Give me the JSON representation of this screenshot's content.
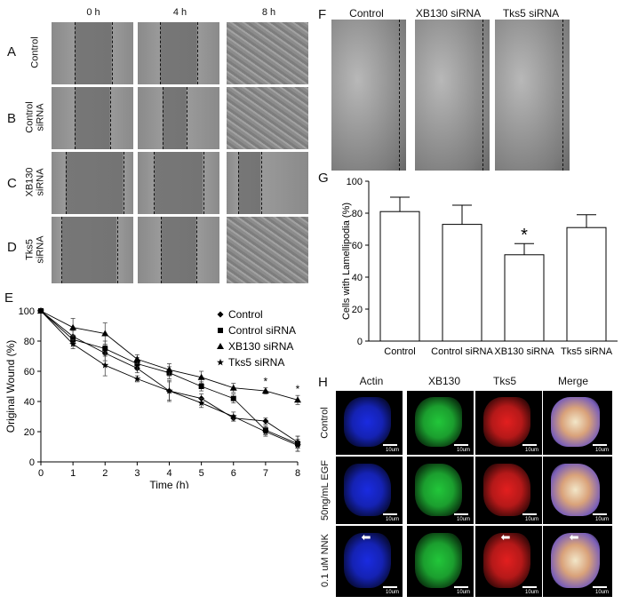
{
  "panelA": {
    "letter": "A",
    "row_label": "Control"
  },
  "panelB": {
    "letter": "B",
    "row_label_1": "Control",
    "row_label_2": "siRNA"
  },
  "panelC": {
    "letter": "C",
    "row_label_1": "XB130",
    "row_label_2": "siRNA"
  },
  "panelD": {
    "letter": "D",
    "row_label_1": "Tks5",
    "row_label_2": "siRNA"
  },
  "wound_columns": [
    "0 h",
    "4 h",
    "8 h"
  ],
  "panelE": {
    "letter": "E"
  },
  "panelF": {
    "letter": "F",
    "columns": [
      "Control",
      "XB130 siRNA",
      "Tks5 siRNA"
    ]
  },
  "panelG": {
    "letter": "G"
  },
  "panelH": {
    "letter": "H",
    "columns": [
      "Actin",
      "XB130",
      "Tks5",
      "Merge"
    ],
    "rows": [
      "Control",
      "50ng/mL EGF",
      "0.1 uM NNK"
    ],
    "scale_label": "10um"
  },
  "colors": {
    "actin": "#1a2be0",
    "xb130": "#22c63a",
    "tks5": "#e21f1f"
  },
  "chart_data": [
    {
      "type": "line",
      "xlabel": "Time (h)",
      "ylabel": "Original Wound (%)",
      "xlim": [
        0,
        8
      ],
      "ylim": [
        0,
        100
      ],
      "x": [
        0,
        1,
        2,
        3,
        4,
        5,
        6,
        7,
        8
      ],
      "xticks": [
        "0",
        "1",
        "2",
        "3",
        "4",
        "5",
        "6",
        "7",
        "8"
      ],
      "yticks": [
        "0",
        "20",
        "40",
        "60",
        "80",
        "100"
      ],
      "legend": "right",
      "series": [
        {
          "name": "Control",
          "marker": "diamond",
          "values": [
            100,
            83,
            72,
            62,
            47,
            42,
            29,
            27,
            13
          ],
          "err": [
            0,
            4,
            5,
            3,
            6,
            3,
            2,
            2,
            4
          ]
        },
        {
          "name": "Control siRNA",
          "marker": "square",
          "values": [
            100,
            81,
            75,
            65,
            59,
            50,
            42,
            21,
            12
          ],
          "err": [
            0,
            3,
            5,
            4,
            4,
            3,
            3,
            3,
            5
          ]
        },
        {
          "name": "XB130 siRNA",
          "marker": "triangle",
          "values": [
            100,
            89,
            85,
            68,
            61,
            56,
            49,
            47,
            41
          ],
          "err": [
            0,
            6,
            7,
            3,
            4,
            4,
            3,
            2,
            3
          ]
        },
        {
          "name": "Tks5 siRNA",
          "marker": "star",
          "values": [
            100,
            78,
            64,
            55,
            47,
            39,
            30,
            20,
            11
          ],
          "err": [
            0,
            3,
            7,
            2,
            7,
            3,
            3,
            3,
            4
          ]
        }
      ],
      "annotations": [
        {
          "x": 7,
          "text": "*"
        },
        {
          "x": 8,
          "text": "*"
        }
      ]
    },
    {
      "type": "bar",
      "ylabel": "Cells with Lamellipodia (%)",
      "ylim": [
        0,
        100
      ],
      "yticks": [
        "0",
        "20",
        "40",
        "60",
        "80",
        "100"
      ],
      "categories": [
        "Control",
        "Control siRNA",
        "XB130 siRNA",
        "Tks5 siRNA"
      ],
      "values": [
        81,
        73,
        54,
        71
      ],
      "err": [
        9,
        12,
        7,
        8
      ],
      "annotations": [
        {
          "category": "XB130 siRNA",
          "text": "*"
        }
      ]
    }
  ]
}
